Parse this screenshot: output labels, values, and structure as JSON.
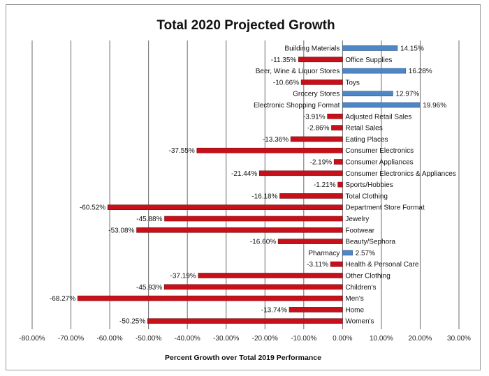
{
  "chart_data": {
    "type": "bar",
    "orientation": "horizontal",
    "title": "Total 2020 Projected Growth",
    "xlabel": "Percent Growth over Total 2019 Performance",
    "ylabel": "",
    "xlim": [
      -80,
      30
    ],
    "xticks": [
      -80,
      -70,
      -60,
      -50,
      -40,
      -30,
      -20,
      -10,
      0,
      10,
      20,
      30
    ],
    "xtick_labels": [
      "-80.00%",
      "-70.00%",
      "-60.00%",
      "-50.00%",
      "-40.00%",
      "-30.00%",
      "-20.00%",
      "-10.00%",
      "0.00%",
      "10.00%",
      "20.00%",
      "30.00%"
    ],
    "grid": true,
    "colors": {
      "positive": "#4f86c6",
      "negative": "#c8101a"
    },
    "categories": [
      "Building Materials",
      "Office Supplies",
      "Beer, Wine & Liquor Stores",
      "Toys",
      "Grocery Stores",
      "Electronic Shopping Format",
      "Adjusted Retail Sales",
      "Retail Sales",
      "Eating Places",
      "Consumer Electronics",
      "Consumer Appliances",
      "Consumer Electronics & Appliances",
      "Sports/Hobbies",
      "Total Clothing",
      "Department Store Format",
      "Jewelry",
      "Footwear",
      "Beauty/Sephora",
      "Pharmacy",
      "Health & Personal Care",
      "Other Clothing",
      "Children's",
      "Men's",
      "Home",
      "Women's"
    ],
    "values": [
      14.15,
      -11.35,
      16.28,
      -10.66,
      12.97,
      19.96,
      -3.91,
      -2.86,
      -13.36,
      -37.55,
      -2.19,
      -21.44,
      -1.21,
      -16.18,
      -60.52,
      -45.88,
      -53.08,
      -16.6,
      2.57,
      -3.11,
      -37.19,
      -45.93,
      -68.27,
      -13.74,
      -50.25
    ],
    "value_labels": [
      "14.15%",
      "-11.35%",
      "16.28%",
      "-10.66%",
      "12.97%",
      "19.96%",
      "-3.91%",
      "-2.86%",
      "-13.36%",
      "-37.55%",
      "-2.19%",
      "-21.44%",
      "-1.21%",
      "-16.18%",
      "-60.52%",
      "-45.88%",
      "-53.08%",
      "-16.60%",
      "2.57%",
      "-3.11%",
      "-37.19%",
      "-45.93%",
      "-68.27%",
      "-13.74%",
      "-50.25%"
    ]
  }
}
